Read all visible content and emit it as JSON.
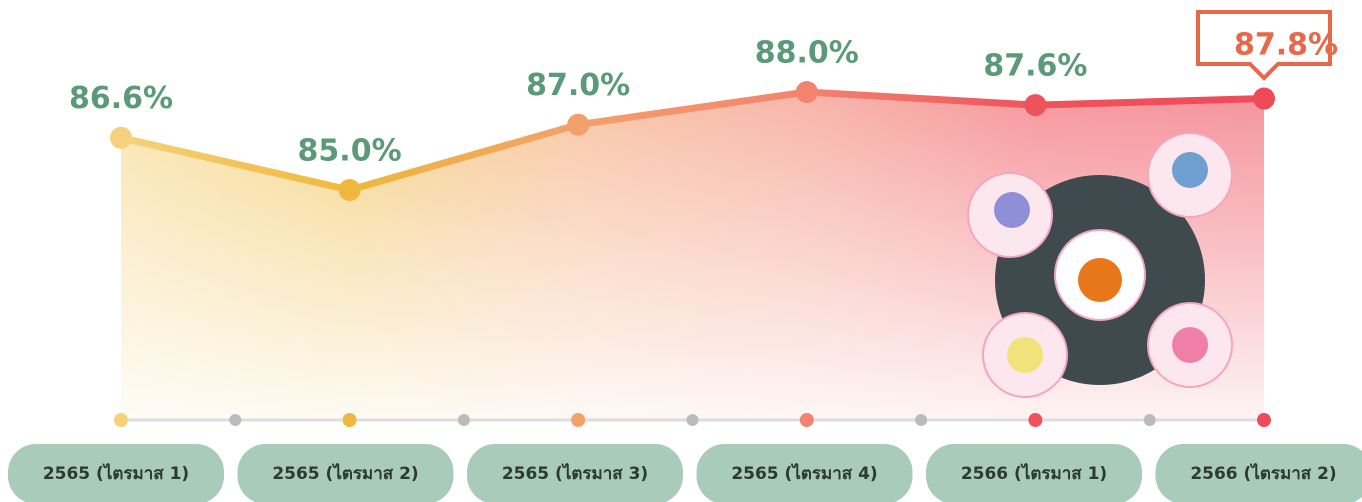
{
  "chart_data": {
    "type": "line",
    "categories": [
      "2565 (ไตรมาส 1)",
      "2565 (ไตรมาส 2)",
      "2565 (ไตรมาส 3)",
      "2565 (ไตรมาส 4)",
      "2566 (ไตรมาส 1)",
      "2566 (ไตรมาส 2)"
    ],
    "values": [
      86.6,
      85.0,
      87.0,
      88.0,
      87.6,
      87.8
    ],
    "value_labels": [
      "86.6%",
      "85.0%",
      "87.0%",
      "88.0%",
      "87.6%",
      "87.8%"
    ],
    "colors": [
      "#f5d27a",
      "#efb83c",
      "#f4a06a",
      "#f2836f",
      "#f0525c",
      "#ee4b58"
    ],
    "highlight": 5
  }
}
